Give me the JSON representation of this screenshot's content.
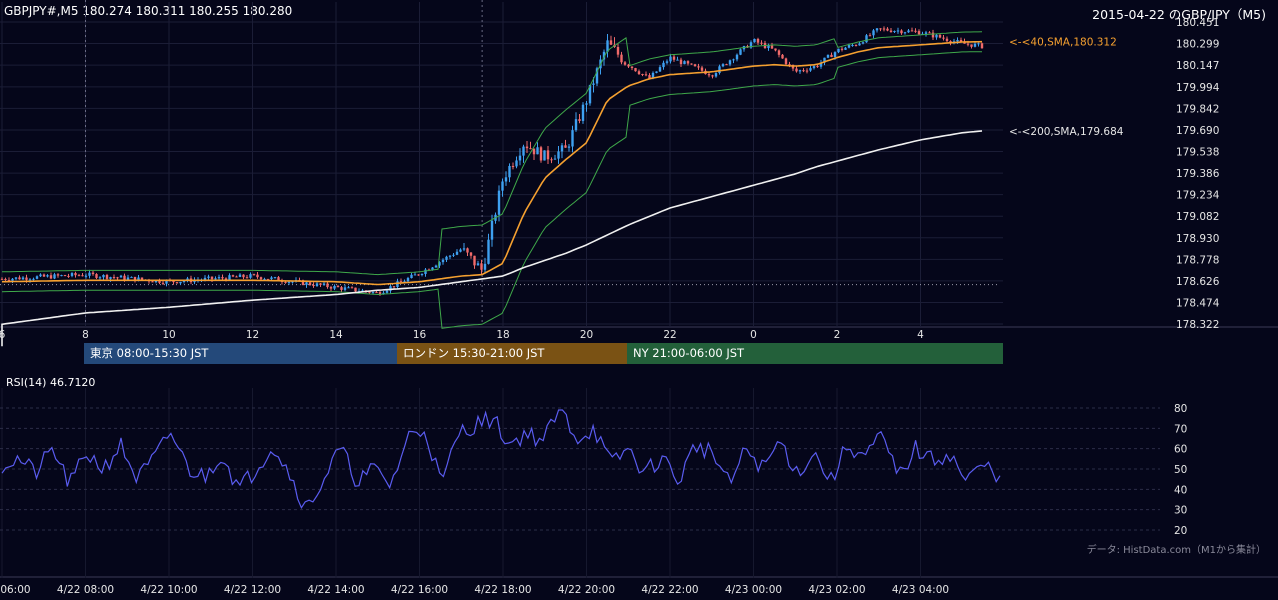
{
  "header": {
    "symbol_info": "GBPJPY#,M5 180.274 180.311 180.255 180.280",
    "title": "2015-04-22 のGBP/JPY（M5)"
  },
  "sessions": [
    {
      "label": "東京 08:00-15:30 JST",
      "color": "#24497a"
    },
    {
      "label": "ロンドン 15:30-21:00 JST",
      "color": "#7a5214"
    },
    {
      "label": "NY 21:00-06:00 JST",
      "color": "#23603a"
    }
  ],
  "source_note": "データ: HistData.com（M1から集計）",
  "colors": {
    "background": "#05061a",
    "up": "#3ea0f0",
    "down": "#f06a6a",
    "sma40": "#f5a030",
    "sma200": "#f0f0f0",
    "bollinger": "#3fa84a",
    "rsi": "#5a5cf0"
  },
  "chart_data": [
    {
      "type": "line",
      "name": "price",
      "ylim": [
        178.322,
        180.451
      ],
      "y_ticks": [
        "180.451",
        "180.299",
        "180.147",
        "179.994",
        "179.842",
        "179.690",
        "179.538",
        "179.386",
        "179.234",
        "179.082",
        "178.930",
        "178.778",
        "178.626",
        "178.474",
        "178.322"
      ],
      "x_ticks": [
        "6",
        "8",
        "10",
        "12",
        "14",
        "16",
        "18",
        "20",
        "22",
        "0",
        "2",
        "4"
      ],
      "series": [
        {
          "name": "<-<40,SMA,180.312",
          "last": 180.312
        },
        {
          "name": "<-<200,SMA,179.684",
          "last": 179.684
        }
      ],
      "reference_level": 178.6,
      "x": [
        6,
        8,
        10,
        12,
        14,
        15,
        16,
        17,
        17.5,
        18,
        18.5,
        19,
        19.5,
        20,
        20.5,
        21,
        21.5,
        22,
        23,
        0,
        0.5,
        1,
        1.5,
        2,
        2.5,
        3,
        4,
        5,
        5.5
      ],
      "close": [
        178.64,
        178.67,
        178.62,
        178.66,
        178.58,
        178.54,
        178.68,
        178.85,
        178.7,
        179.35,
        179.6,
        179.5,
        179.55,
        179.9,
        180.3,
        180.15,
        180.05,
        180.2,
        180.08,
        180.32,
        180.25,
        180.1,
        180.14,
        180.25,
        180.3,
        180.4,
        180.38,
        180.3,
        180.28
      ],
      "sma40": [
        178.62,
        178.63,
        178.63,
        178.63,
        178.62,
        178.6,
        178.62,
        178.66,
        178.67,
        178.75,
        179.1,
        179.35,
        179.48,
        179.6,
        179.9,
        180.0,
        180.05,
        180.08,
        180.1,
        180.14,
        180.15,
        180.14,
        180.15,
        180.2,
        180.24,
        180.27,
        180.29,
        180.31,
        180.312
      ],
      "sma200": [
        178.32,
        178.4,
        178.44,
        178.49,
        178.53,
        178.56,
        178.58,
        178.62,
        178.64,
        178.66,
        178.72,
        178.77,
        178.82,
        178.88,
        178.95,
        179.02,
        179.08,
        179.14,
        179.22,
        179.3,
        179.34,
        179.38,
        179.43,
        179.47,
        179.51,
        179.55,
        179.62,
        179.67,
        179.684
      ]
    },
    {
      "type": "line",
      "name": "RSI",
      "title": "RSI(14) 46.7120",
      "ylim": [
        20,
        80
      ],
      "y_ticks": [
        "80",
        "70",
        "60",
        "50",
        "40",
        "30",
        "20"
      ],
      "x_labels": [
        "4/22 06:00",
        "4/22 08:00",
        "4/22 10:00",
        "4/22 12:00",
        "4/22 14:00",
        "4/22 16:00",
        "4/22 18:00",
        "4/22 20:00",
        "4/22 22:00",
        "4/23 00:00",
        "4/23 02:00",
        "4/23 04:00"
      ],
      "values": [
        52,
        55,
        48,
        60,
        42,
        58,
        50,
        62,
        45,
        55,
        68,
        50,
        46,
        58,
        40,
        50,
        62,
        48,
        30,
        45,
        60,
        44,
        50,
        42,
        66,
        70,
        42,
        68,
        72,
        75,
        62,
        68,
        64,
        80,
        65,
        70,
        52,
        60,
        48,
        56,
        44,
        62,
        58,
        42,
        60,
        50,
        64,
        48,
        58,
        44,
        62,
        56,
        66,
        46,
        60,
        54,
        58,
        44,
        52,
        46.7
      ]
    }
  ]
}
